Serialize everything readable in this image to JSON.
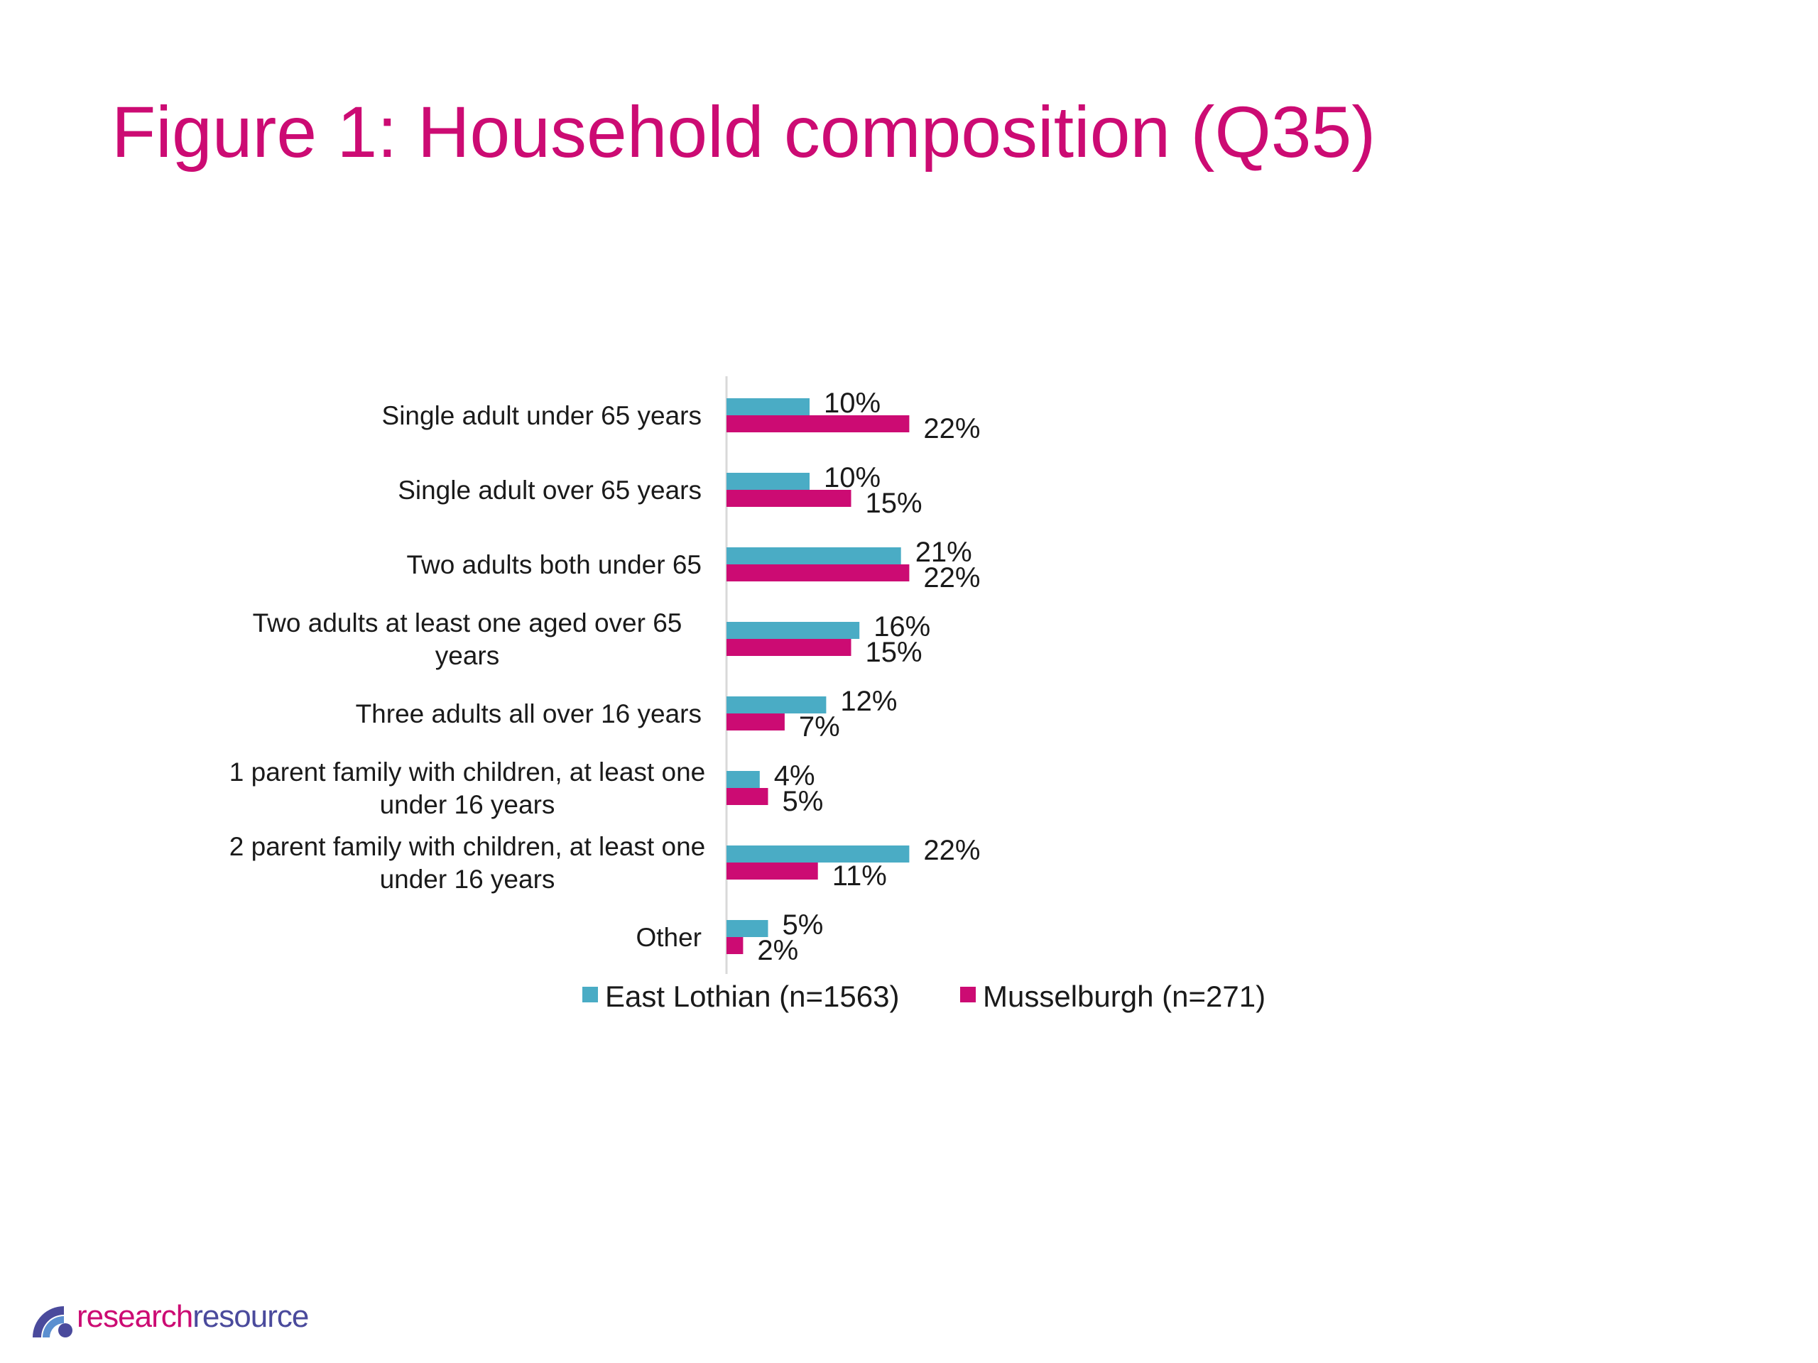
{
  "title": "Figure 1: Household composition (Q35)",
  "chart_data": {
    "type": "bar",
    "orientation": "horizontal",
    "categories": [
      [
        "Single adult under 65 years"
      ],
      [
        "Single adult over 65 years"
      ],
      [
        "Two adults both under 65"
      ],
      [
        "Two adults at least one aged over 65",
        "years"
      ],
      [
        "Three adults all over 16 years"
      ],
      [
        "1 parent family with children, at least one",
        "under 16 years"
      ],
      [
        "2 parent family with children, at least one",
        "under 16 years"
      ],
      [
        "Other"
      ]
    ],
    "series": [
      {
        "name": "East Lothian (n=1563)",
        "color": "#4aacc5",
        "values": [
          10,
          10,
          21,
          16,
          12,
          4,
          22,
          5
        ]
      },
      {
        "name": "Musselburgh (n=271)",
        "color": "#cc0b73",
        "values": [
          22,
          15,
          22,
          15,
          7,
          5,
          11,
          2
        ]
      }
    ],
    "value_suffix": "%",
    "legend_position": "bottom",
    "grid": false
  },
  "logo": {
    "text_a": "research",
    "text_b": "resource",
    "color_a": "#cc0b73",
    "color_b": "#4a4a9c"
  }
}
